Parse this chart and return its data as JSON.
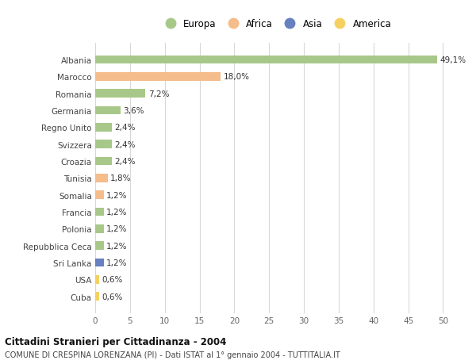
{
  "categories": [
    "Albania",
    "Marocco",
    "Romania",
    "Germania",
    "Regno Unito",
    "Svizzera",
    "Croazia",
    "Tunisia",
    "Somalia",
    "Francia",
    "Polonia",
    "Repubblica Ceca",
    "Sri Lanka",
    "USA",
    "Cuba"
  ],
  "values": [
    49.1,
    18.0,
    7.2,
    3.6,
    2.4,
    2.4,
    2.4,
    1.8,
    1.2,
    1.2,
    1.2,
    1.2,
    1.2,
    0.6,
    0.6
  ],
  "labels": [
    "49,1%",
    "18,0%",
    "7,2%",
    "3,6%",
    "2,4%",
    "2,4%",
    "2,4%",
    "1,8%",
    "1,2%",
    "1,2%",
    "1,2%",
    "1,2%",
    "1,2%",
    "0,6%",
    "0,6%"
  ],
  "continents": [
    "Europa",
    "Africa",
    "Europa",
    "Europa",
    "Europa",
    "Europa",
    "Europa",
    "Africa",
    "Africa",
    "Europa",
    "Europa",
    "Europa",
    "Asia",
    "America",
    "America"
  ],
  "continent_colors": {
    "Europa": "#a8c88a",
    "Africa": "#f5bc8c",
    "Asia": "#6680c0",
    "America": "#f5d060"
  },
  "legend_entries": [
    "Europa",
    "Africa",
    "Asia",
    "America"
  ],
  "legend_colors": [
    "#a8c88a",
    "#f5bc8c",
    "#6680c0",
    "#f5d060"
  ],
  "title1": "Cittadini Stranieri per Cittadinanza - 2004",
  "title2": "COMUNE DI CRESPINA LORENZANA (PI) - Dati ISTAT al 1° gennaio 2004 - TUTTITALIA.IT",
  "xlim": [
    0,
    52
  ],
  "xticks": [
    0,
    5,
    10,
    15,
    20,
    25,
    30,
    35,
    40,
    45,
    50
  ],
  "background_color": "#ffffff",
  "grid_color": "#d8d8d8"
}
